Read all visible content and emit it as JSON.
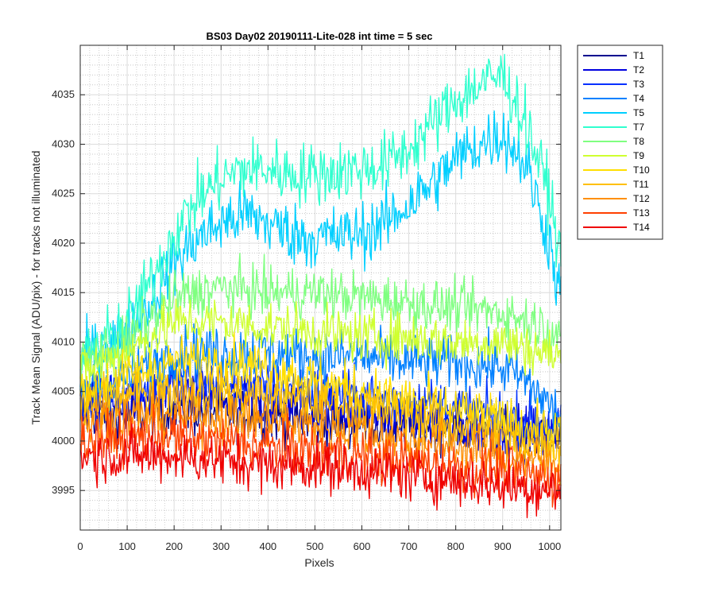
{
  "chart_data": {
    "type": "line",
    "title": "BS03 Day02 20190111-Lite-028 int time = 5 sec",
    "xlabel": "Pixels",
    "ylabel": "Track Mean Signal (ADU/pix) - for tracks not illuminated",
    "xlim": [
      0,
      1024
    ],
    "ylim": [
      3991,
      4040
    ],
    "xticks": [
      0,
      100,
      200,
      300,
      400,
      500,
      600,
      700,
      800,
      900,
      1000
    ],
    "yticks": [
      3995,
      4000,
      4005,
      4010,
      4015,
      4020,
      4025,
      4030,
      4035
    ],
    "grid": "major and minor",
    "legend_position": "outside-top-right",
    "series": [
      {
        "name": "T1",
        "color": "#00008f",
        "noise": 1.3,
        "x": [
          0,
          100,
          200,
          300,
          400,
          500,
          600,
          700,
          800,
          900,
          1024
        ],
        "y": [
          4003,
          4002.5,
          4003,
          4003,
          4002.5,
          4002,
          4002,
          4001.5,
          4001.5,
          4001,
          4000.5
        ]
      },
      {
        "name": "T2",
        "color": "#0000df",
        "noise": 1.3,
        "x": [
          0,
          100,
          200,
          300,
          400,
          500,
          600,
          700,
          800,
          900,
          1024
        ],
        "y": [
          4003.5,
          4004,
          4004.5,
          4004.5,
          4004,
          4003.5,
          4003,
          4002,
          4001.5,
          4001,
          4000.5
        ]
      },
      {
        "name": "T3",
        "color": "#0030ff",
        "noise": 1.3,
        "x": [
          0,
          100,
          200,
          300,
          400,
          500,
          600,
          700,
          800,
          900,
          1024
        ],
        "y": [
          4004,
          4005.5,
          4006,
          4006,
          4005.5,
          4005,
          4004.5,
          4004,
          4003.5,
          4002.5,
          4001.5
        ]
      },
      {
        "name": "T4",
        "color": "#0080ff",
        "noise": 1.4,
        "x": [
          0,
          100,
          200,
          300,
          400,
          500,
          600,
          700,
          800,
          900,
          950,
          1024
        ],
        "y": [
          4005,
          4006.5,
          4009,
          4009,
          4009,
          4008.5,
          4008.5,
          4008,
          4008,
          4007.5,
          4006,
          4002.5
        ]
      },
      {
        "name": "T5",
        "color": "#00cfff",
        "noise": 1.6,
        "x": [
          0,
          100,
          150,
          200,
          250,
          300,
          350,
          400,
          450,
          500,
          600,
          650,
          700,
          750,
          800,
          850,
          900,
          950,
          1000,
          1024
        ],
        "y": [
          4008,
          4011,
          4014,
          4018,
          4020.5,
          4022,
          4023,
          4022,
          4021,
          4020.5,
          4021,
          4022,
          4024,
          4026,
          4028.5,
          4030,
          4031,
          4028,
          4020,
          4014
        ]
      },
      {
        "name": "T7",
        "color": "#30ffcf",
        "noise": 1.6,
        "x": [
          0,
          100,
          150,
          200,
          250,
          300,
          350,
          400,
          450,
          500,
          600,
          650,
          700,
          750,
          800,
          850,
          900,
          950,
          1000,
          1024
        ],
        "y": [
          4008,
          4012,
          4016,
          4021,
          4024.5,
          4026.5,
          4027.5,
          4027.5,
          4027,
          4027,
          4027.5,
          4028,
          4029.5,
          4032,
          4034.5,
          4036,
          4037,
          4032,
          4025,
          4018
        ]
      },
      {
        "name": "T8",
        "color": "#7fff80",
        "noise": 1.3,
        "x": [
          0,
          100,
          200,
          300,
          400,
          500,
          600,
          700,
          800,
          900,
          1024
        ],
        "y": [
          4008,
          4010,
          4014.5,
          4015.5,
          4015,
          4015,
          4014.5,
          4014,
          4013.5,
          4013,
          4011
        ]
      },
      {
        "name": "T9",
        "color": "#cfff30",
        "noise": 1.3,
        "x": [
          0,
          100,
          200,
          300,
          400,
          500,
          600,
          700,
          800,
          900,
          1024
        ],
        "y": [
          4007,
          4009,
          4012,
          4012,
          4011.5,
          4011,
          4010.5,
          4010.5,
          4010,
          4010,
          4008.5
        ]
      },
      {
        "name": "T10",
        "color": "#ffdf00",
        "noise": 1.3,
        "x": [
          0,
          100,
          200,
          300,
          400,
          500,
          600,
          700,
          800,
          900,
          1024
        ],
        "y": [
          4005,
          4006.5,
          4008,
          4008,
          4007.5,
          4006,
          4005,
          4004,
          4003,
          4002,
          4000.5
        ]
      },
      {
        "name": "T11",
        "color": "#ffbf00",
        "noise": 1.3,
        "x": [
          0,
          100,
          200,
          300,
          400,
          500,
          600,
          700,
          800,
          900,
          1024
        ],
        "y": [
          4003.5,
          4004.5,
          4005,
          4005,
          4004.5,
          4004,
          4003.5,
          4002.5,
          4001.5,
          4000.5,
          3999.5
        ]
      },
      {
        "name": "T12",
        "color": "#ff8f00",
        "noise": 1.3,
        "x": [
          0,
          100,
          200,
          300,
          400,
          500,
          600,
          700,
          800,
          900,
          1024
        ],
        "y": [
          4002,
          4002.5,
          4002.5,
          4002.5,
          4002,
          4001.5,
          4001,
          4000,
          3999.5,
          3998.5,
          3997.5
        ]
      },
      {
        "name": "T13",
        "color": "#ff4000",
        "noise": 1.3,
        "x": [
          0,
          100,
          200,
          300,
          400,
          500,
          600,
          700,
          800,
          900,
          1024
        ],
        "y": [
          4000,
          4000.5,
          4000.5,
          4000,
          3999.5,
          3999,
          3998.5,
          3998,
          3997.5,
          3997,
          3996
        ]
      },
      {
        "name": "T14",
        "color": "#ef0000",
        "noise": 1.3,
        "x": [
          0,
          100,
          200,
          300,
          400,
          500,
          600,
          700,
          800,
          900,
          1024
        ],
        "y": [
          3998.5,
          3998.5,
          3998.5,
          3998,
          3997.5,
          3997.5,
          3997,
          3996.5,
          3996,
          3995.5,
          3995
        ]
      }
    ]
  }
}
